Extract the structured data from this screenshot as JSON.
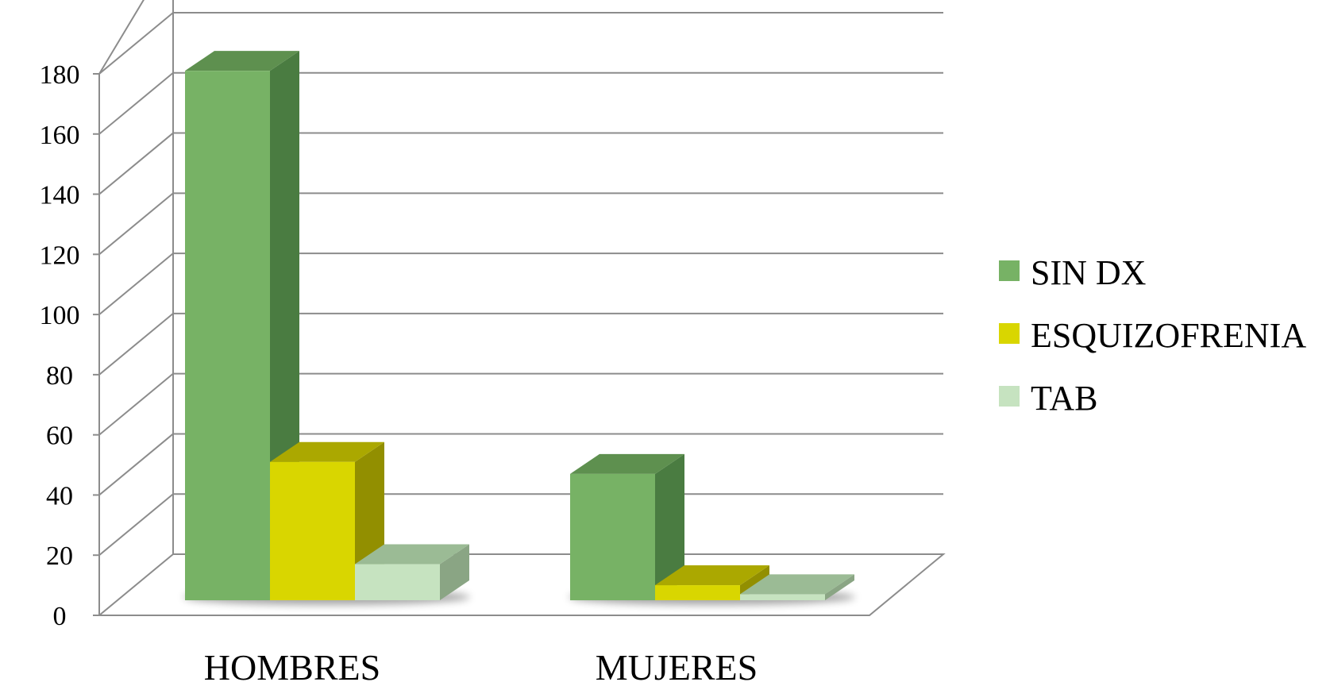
{
  "chart_data": {
    "type": "bar",
    "categories": [
      "HOMBRES",
      "MUJERES"
    ],
    "series": [
      {
        "name": "SIN DX",
        "values": [
          176,
          42
        ],
        "color": "#77b265",
        "dark": "#4a7c41",
        "top": "#5e904f"
      },
      {
        "name": "ESQUIZOFRENIA",
        "values": [
          46,
          5
        ],
        "color": "#d9d600",
        "dark": "#928f00",
        "top": "#aba800"
      },
      {
        "name": "TAB",
        "values": [
          12,
          2
        ],
        "color": "#c6e3c0",
        "dark": "#8aa584",
        "top": "#9bbb95"
      }
    ],
    "y_ticks": [
      "0",
      "20",
      "40",
      "60",
      "80",
      "100",
      "120",
      "140",
      "160",
      "180"
    ],
    "ylim": [
      0,
      180
    ],
    "title": "",
    "xlabel": "",
    "ylabel": "",
    "grid": true,
    "legend_position": "right",
    "chart_style": "3d-clustered-column"
  }
}
